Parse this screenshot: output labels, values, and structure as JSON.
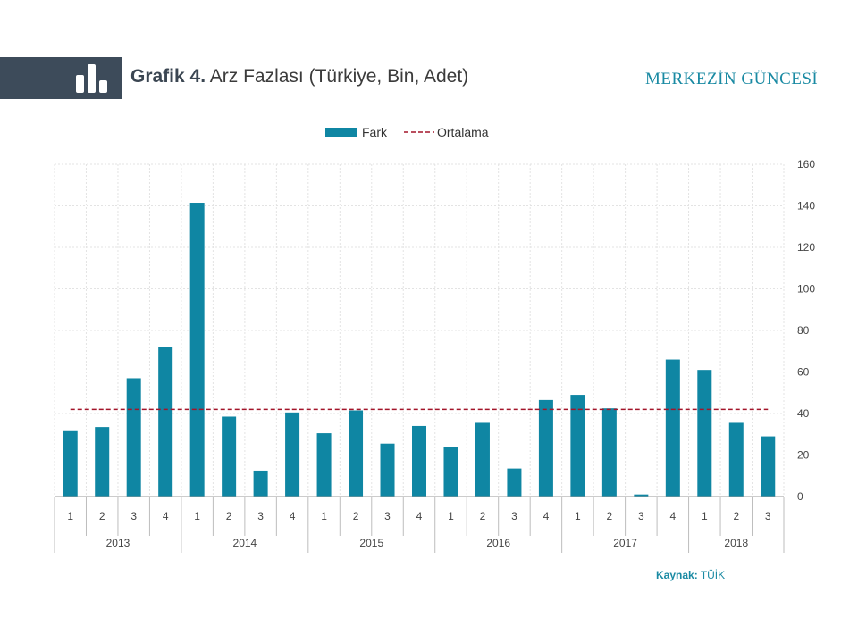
{
  "header": {
    "title_lead": "Grafik 4.",
    "title_rest": "Arz Fazlası (Türkiye, Bin, Adet)",
    "brand": "MERKEZİN GÜNCESİ",
    "logo_icon": "bar-chart-logo-icon"
  },
  "source": {
    "label": "Kaynak:",
    "value": "TÜİK"
  },
  "colors": {
    "bar": "#0f86a3",
    "average_line": "#a3152a",
    "header_band": "#3d4b5a",
    "brand": "#1a8aa3"
  },
  "chart_data": {
    "type": "bar",
    "title": "",
    "xlabel": "",
    "ylabel": "",
    "ylim": [
      0,
      160
    ],
    "yticks": [
      0,
      20,
      40,
      60,
      80,
      100,
      120,
      140,
      160
    ],
    "y_axis_side": "right",
    "grid": true,
    "legend_position": "top-center",
    "categories": [
      "1",
      "2",
      "3",
      "4",
      "1",
      "2",
      "3",
      "4",
      "1",
      "2",
      "3",
      "4",
      "1",
      "2",
      "3",
      "4",
      "1",
      "2",
      "3",
      "4",
      "1",
      "2",
      "3"
    ],
    "groups": [
      {
        "label": "2013",
        "count": 4
      },
      {
        "label": "2014",
        "count": 4
      },
      {
        "label": "2015",
        "count": 4
      },
      {
        "label": "2016",
        "count": 4
      },
      {
        "label": "2017",
        "count": 4
      },
      {
        "label": "2018",
        "count": 3
      }
    ],
    "series": [
      {
        "name": "Fark",
        "type": "bar",
        "values": [
          31.5,
          33.5,
          57,
          72,
          141.5,
          38.5,
          12.5,
          40.5,
          30.5,
          41.5,
          25.5,
          34,
          24,
          35.5,
          13.5,
          46.5,
          49,
          42.5,
          1,
          66,
          61,
          35.5,
          29
        ]
      },
      {
        "name": "Ortalama",
        "type": "line-dashed",
        "value": 42
      }
    ]
  }
}
